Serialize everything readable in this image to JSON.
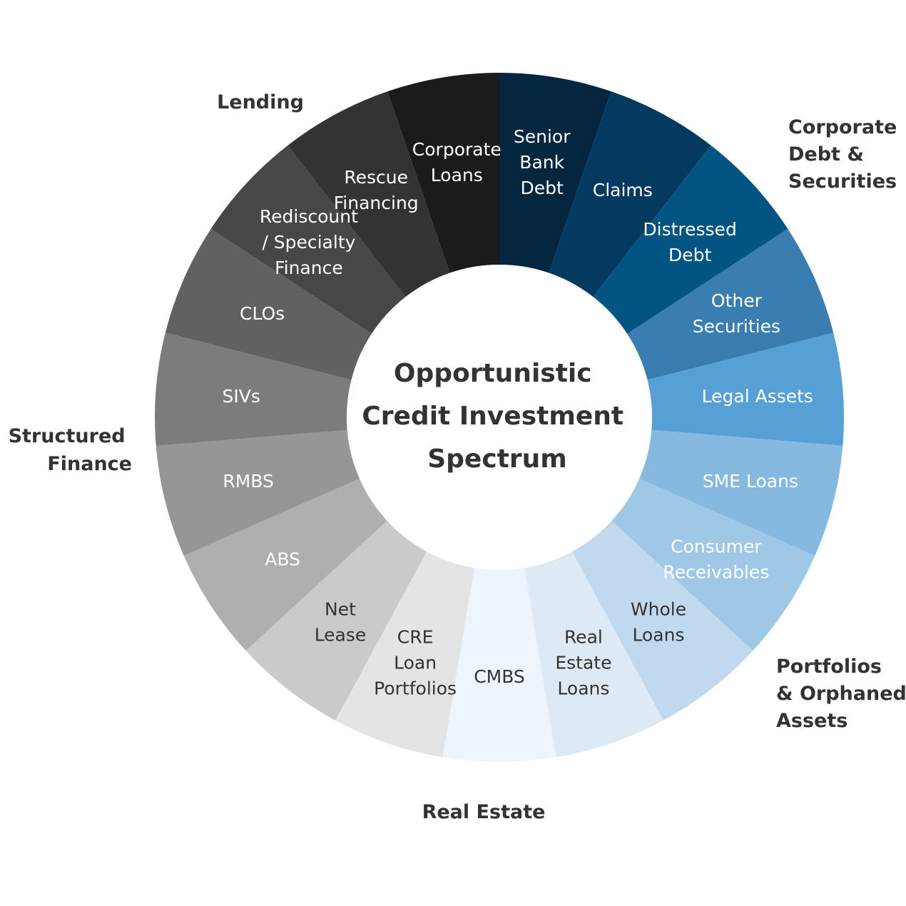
{
  "center_title": [
    "Opportunistic",
    "Credit Investment",
    "Spectrum"
  ],
  "groups": [
    {
      "name": [
        "Lending"
      ]
    },
    {
      "name": [
        "Corporate",
        "Debt &",
        "Securities"
      ]
    },
    {
      "name": [
        "Structured",
        "Finance"
      ]
    },
    {
      "name": [
        "Portfolios",
        "& Orphaned",
        "Assets"
      ]
    },
    {
      "name": [
        "Real Estate"
      ]
    }
  ],
  "segments": [
    {
      "label": [
        "Senior",
        "Bank",
        "Debt"
      ],
      "color": "#04263f",
      "text": "light"
    },
    {
      "label": [
        "Claims"
      ],
      "color": "#053a60",
      "text": "light"
    },
    {
      "label": [
        "Distressed",
        "Debt"
      ],
      "color": "#025482",
      "text": "light"
    },
    {
      "label": [
        "Other",
        "Securities"
      ],
      "color": "#3a7db0",
      "text": "light"
    },
    {
      "label": [
        "Legal Assets"
      ],
      "color": "#56a0d5",
      "text": "light"
    },
    {
      "label": [
        "SME Loans"
      ],
      "color": "#85b9e0",
      "text": "light"
    },
    {
      "label": [
        "Consumer",
        "Receivables"
      ],
      "color": "#9fc8e6",
      "text": "light"
    },
    {
      "label": [
        "Whole",
        "Loans"
      ],
      "color": "#c0d9ee",
      "text": "dark"
    },
    {
      "label": [
        "Real",
        "Estate",
        "Loans"
      ],
      "color": "#dde9f5",
      "text": "dark"
    },
    {
      "label": [
        "CMBS"
      ],
      "color": "#eef4fb",
      "text": "dark"
    },
    {
      "label": [
        "CRE",
        "Loan",
        "Portfolios"
      ],
      "color": "#e4e4e4",
      "text": "dark"
    },
    {
      "label": [
        "Net",
        "Lease"
      ],
      "color": "#cacaca",
      "text": "dark"
    },
    {
      "label": [
        "ABS"
      ],
      "color": "#afafaf",
      "text": "light"
    },
    {
      "label": [
        "RMBS"
      ],
      "color": "#969696",
      "text": "light"
    },
    {
      "label": [
        "SIVs"
      ],
      "color": "#7c7c7c",
      "text": "light"
    },
    {
      "label": [
        "CLOs"
      ],
      "color": "#616161",
      "text": "light"
    },
    {
      "label": [
        "Rediscount",
        "/ Specialty",
        "Finance"
      ],
      "color": "#474747",
      "text": "light"
    },
    {
      "label": [
        "Rescue",
        "Financing"
      ],
      "color": "#333333",
      "text": "light"
    },
    {
      "label": [
        "Corporate",
        "Loans"
      ],
      "color": "#1b1b1b",
      "text": "light"
    }
  ]
}
